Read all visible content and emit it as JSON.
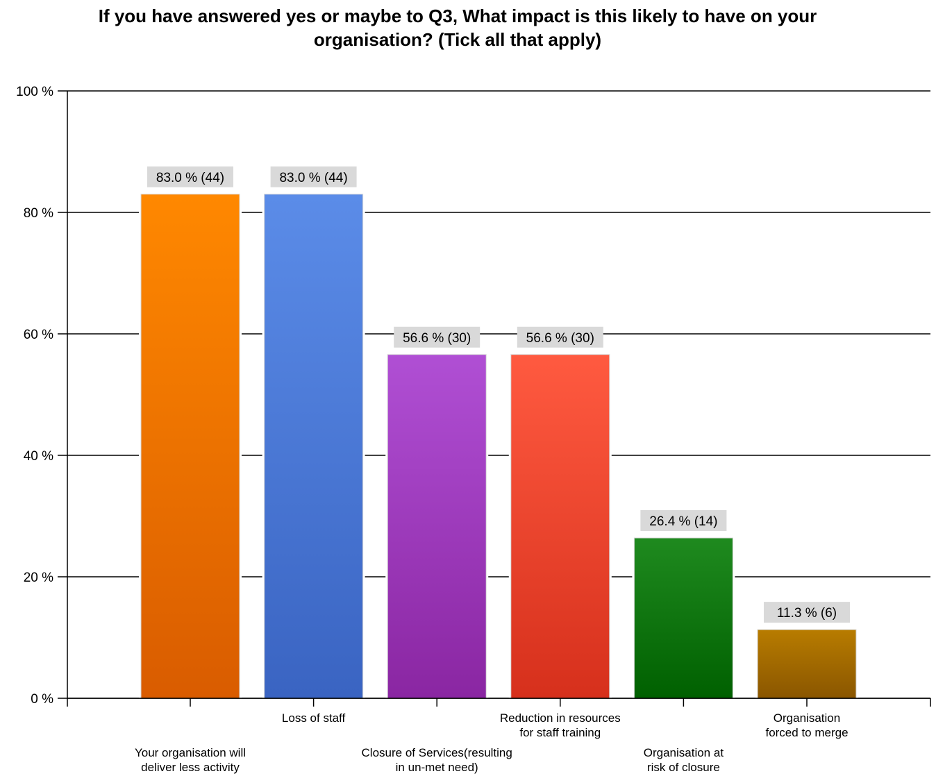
{
  "chart_data": {
    "type": "bar",
    "title_lines": [
      "If you have answered yes or maybe to Q3, What impact is this likely to have on your",
      "organisation? (Tick all that apply)"
    ],
    "categories": [
      [
        "Your organisation will",
        "deliver less activity"
      ],
      [
        "Loss of staff"
      ],
      [
        "Closure of Services(resulting",
        "in un-met need)"
      ],
      [
        "Reduction in resources",
        "for staff training"
      ],
      [
        "Organisation at",
        "risk of closure"
      ],
      [
        "Organisation",
        "forced to merge"
      ]
    ],
    "values": [
      83.0,
      83.0,
      56.6,
      56.6,
      26.4,
      11.3
    ],
    "counts": [
      44,
      44,
      30,
      30,
      14,
      6
    ],
    "data_labels": [
      "83.0 % (44)",
      "83.0 % (44)",
      "56.6 % (30)",
      "56.6 % (30)",
      "26.4 % (14)",
      "11.3 % (6)"
    ],
    "colors": [
      [
        "#ff8800",
        "#d95c00"
      ],
      [
        "#5b8ce8",
        "#3a64c2"
      ],
      [
        "#b04fd4",
        "#8a26a2"
      ],
      [
        "#ff5a40",
        "#d6301c"
      ],
      [
        "#1f8a1f",
        "#006000"
      ],
      [
        "#b87c00",
        "#8a5600"
      ]
    ],
    "ylim": [
      0,
      100
    ],
    "yticks": [
      0,
      20,
      40,
      60,
      80,
      100
    ],
    "ytick_labels": [
      "0 %",
      "20 %",
      "40 %",
      "60 %",
      "80 %",
      "100 %"
    ],
    "grid": true,
    "xlabel": "",
    "ylabel": ""
  }
}
